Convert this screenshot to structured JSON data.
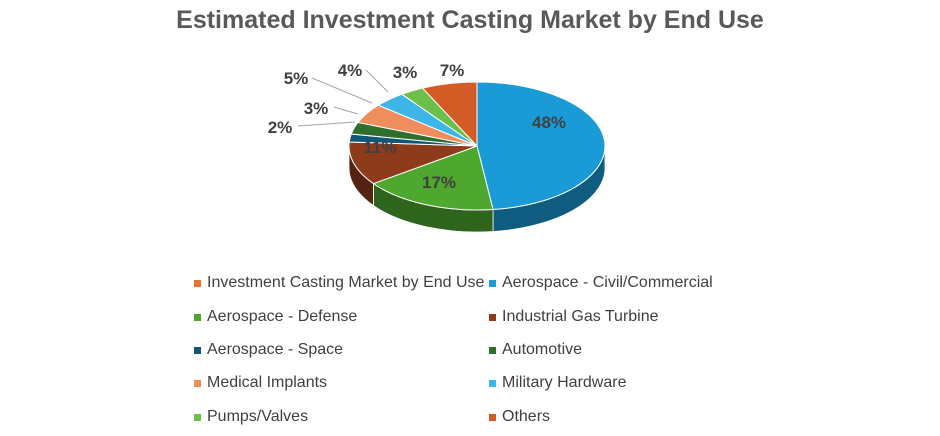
{
  "chart_data": {
    "type": "pie",
    "title": "Estimated Investment Casting Market by End Use",
    "categories": [
      "Investment Casting Market by End Use",
      "Aerospace - Civil/Commercial",
      "Aerospace - Defense",
      "Industrial Gas Turbine",
      "Aerospace - Space",
      "Automotive",
      "Medical Implants",
      "Military Hardware",
      "Pumps/Valves",
      "Others"
    ],
    "values": [
      0,
      48,
      17,
      11,
      2,
      3,
      5,
      4,
      3,
      7
    ],
    "labels": [
      "",
      "48%",
      "17%",
      "11%",
      "2%",
      "3%",
      "5%",
      "4%",
      "3%",
      "7%"
    ],
    "colors": [
      "#e97132",
      "#1a9ad6",
      "#4ea72e",
      "#8e3b1c",
      "#0f5778",
      "#2f6e2c",
      "#ef8d5c",
      "#3db5e6",
      "#6cc04a",
      "#d35b26"
    ],
    "legend_position": "bottom",
    "style": "3d"
  }
}
